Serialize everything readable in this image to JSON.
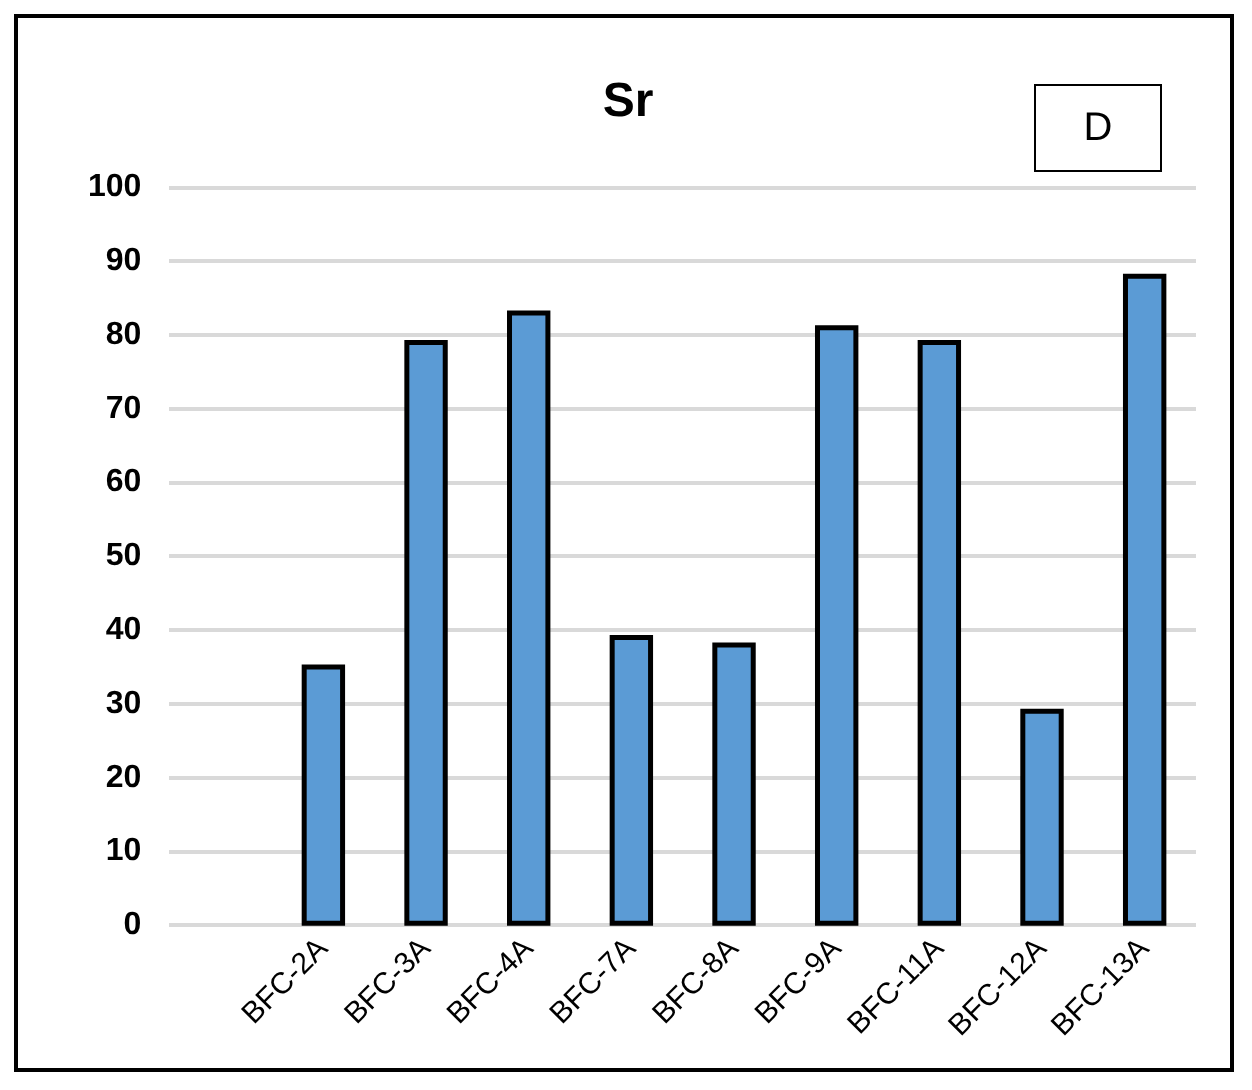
{
  "chart_data": {
    "type": "bar",
    "title": "Sr",
    "categories": [
      null,
      "BFC-2A",
      "BFC-3A",
      "BFC-4A",
      "BFC-7A",
      "BFC-8A",
      "BFC-9A",
      "BFC-11A",
      "BFC-12A",
      "BFC-13A"
    ],
    "values": [
      null,
      35,
      79,
      83,
      39,
      38,
      81,
      79,
      29,
      88
    ],
    "color": "#5b9bd5",
    "ylim": [
      0,
      100
    ],
    "yticks": [
      0,
      10,
      20,
      30,
      40,
      50,
      60,
      70,
      80,
      90,
      100
    ],
    "grid": "y",
    "legend": false,
    "annotations": [
      "D"
    ]
  }
}
